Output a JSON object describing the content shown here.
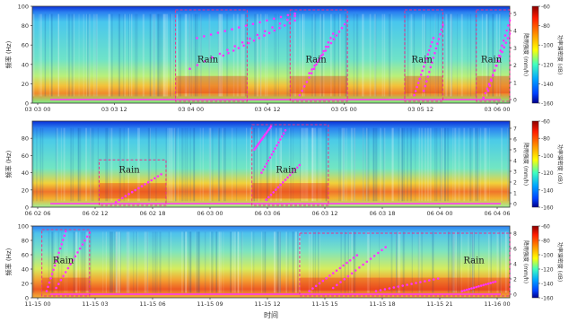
{
  "chart_data": [
    {
      "type": "heatmap",
      "ylabel": "频率 (Hz)",
      "y_ticks": [
        0,
        20,
        40,
        60,
        80,
        100
      ],
      "ylim": [
        0,
        100
      ],
      "x_tick_labels": [
        "03 03 00",
        "03 03 12",
        "03 04 00",
        "03 04 12",
        "03 05 00",
        "03 05 12",
        "03 06 00"
      ],
      "right_ticks": [
        "0",
        "1",
        "2",
        "3",
        "4",
        "5"
      ],
      "right_label": "降雨强度 (mm/h)",
      "colorbar_ticks": [
        "-60",
        "-80",
        "-100",
        "-120",
        "-140",
        "-160"
      ],
      "colorbar_label": "功率谱密度 (dB)",
      "colorbar_range": [
        -160,
        -60
      ],
      "annotation": "Rain",
      "rain_events": [
        [
          0.3,
          0.45
        ],
        [
          0.54,
          0.66
        ],
        [
          0.78,
          0.86
        ],
        [
          0.93,
          1.0
        ]
      ]
    },
    {
      "type": "heatmap",
      "ylabel": "频率 (Hz)",
      "y_ticks": [
        0,
        20,
        40,
        60,
        80
      ],
      "ylim": [
        0,
        100
      ],
      "x_tick_labels": [
        "06 02 06",
        "06 02 12",
        "06 02 18",
        "06 03 00",
        "06 03 06",
        "06 03 12",
        "06 03 18",
        "06 04 00",
        "06 04 06"
      ],
      "right_ticks": [
        "0",
        "1",
        "2",
        "3",
        "4",
        "5",
        "6",
        "7"
      ],
      "right_label": "降雨强度 (mm/h)",
      "colorbar_ticks": [
        "-60",
        "-80",
        "-100",
        "-120",
        "-140",
        "-160"
      ],
      "colorbar_label": "功率谱密度 (dB)",
      "colorbar_range": [
        -160,
        -60
      ],
      "annotation": "Rain",
      "rain_events": [
        [
          0.14,
          0.28
        ],
        [
          0.46,
          0.62
        ]
      ]
    },
    {
      "type": "heatmap",
      "ylabel": "频率 (Hz)",
      "xlabel": "时间",
      "y_ticks": [
        0,
        20,
        40,
        60,
        80,
        100
      ],
      "ylim": [
        0,
        100
      ],
      "x_tick_labels": [
        "11-15 00",
        "11-15 03",
        "11-15 06",
        "11-15 09",
        "11-15 12",
        "11-15 15",
        "11-15 18",
        "11-15 21",
        "11-16 00"
      ],
      "right_ticks": [
        "0",
        "2",
        "4",
        "6",
        "8"
      ],
      "right_label": "降雨强度 (mm/h)",
      "colorbar_ticks": [
        "-60",
        "-80",
        "-100",
        "-120",
        "-140",
        "-160"
      ],
      "colorbar_label": "功率谱密度 (dB)",
      "colorbar_range": [
        -160,
        -60
      ],
      "annotation": "Rain",
      "rain_events": [
        [
          0.02,
          0.12
        ],
        [
          0.56,
          1.0
        ]
      ]
    }
  ],
  "colors": {
    "rain_markers": "#ff33ff",
    "rain_box": "#e8338a"
  }
}
